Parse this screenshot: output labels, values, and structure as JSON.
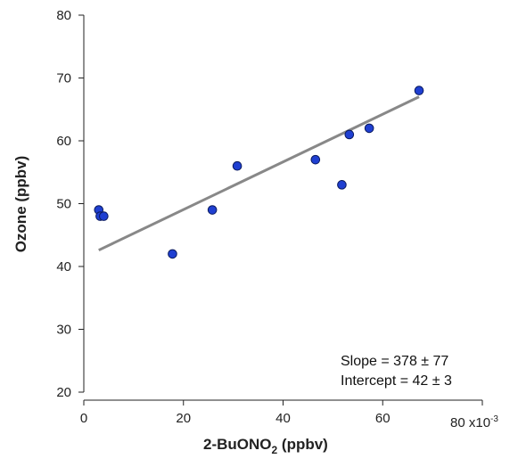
{
  "chart_data": {
    "type": "scatter",
    "xlabel_main": "2-BuONO",
    "xlabel_sub": "2",
    "xlabel_unit": " (ppbv)",
    "ylabel": "Ozone (ppbv)",
    "x_scale_label": "80 x10",
    "x_scale_exp": "-3",
    "xlim": [
      0,
      80
    ],
    "ylim": [
      20,
      80
    ],
    "x_ticks": [
      0,
      20,
      40,
      60
    ],
    "y_ticks": [
      20,
      30,
      40,
      50,
      60,
      70,
      80
    ],
    "points": [
      {
        "x": 3.0,
        "y": 49
      },
      {
        "x": 3.3,
        "y": 48
      },
      {
        "x": 4.0,
        "y": 48
      },
      {
        "x": 17.8,
        "y": 42
      },
      {
        "x": 25.8,
        "y": 49
      },
      {
        "x": 30.8,
        "y": 56
      },
      {
        "x": 46.5,
        "y": 57
      },
      {
        "x": 51.8,
        "y": 53
      },
      {
        "x": 53.3,
        "y": 61
      },
      {
        "x": 57.3,
        "y": 62
      },
      {
        "x": 67.3,
        "y": 68
      }
    ],
    "fit_line": {
      "x": [
        3.0,
        67.3
      ],
      "y": [
        42.6,
        67.0
      ]
    },
    "colors": {
      "point_fill": "#1f3fd1",
      "point_stroke": "#0a1a5e",
      "fit_line": "#888888"
    },
    "annotations": {
      "slope": "Slope = 378 ± 77",
      "intercept": "Intercept = 42 ± 3"
    }
  }
}
